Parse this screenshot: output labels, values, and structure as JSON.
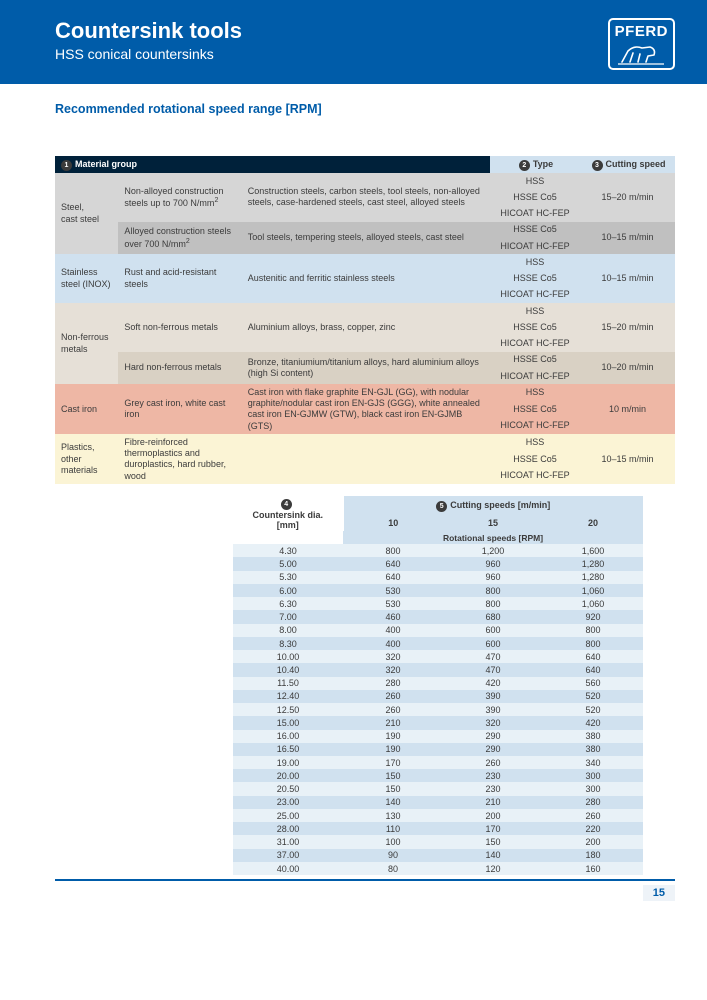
{
  "brand": "PFERD",
  "header": {
    "title": "Countersink tools",
    "subtitle": "HSS conical countersinks"
  },
  "section_heading": "Recommended rotational speed range [RPM]",
  "colors": {
    "brand_blue": "#005ca9",
    "header_dark": "#00213a",
    "band_blue": "#d0e1ef",
    "grey_l": "#d6d6d6",
    "grey_d": "#c0c0c0",
    "tan_l": "#e6e0d7",
    "tan_d": "#d9d1c4",
    "red": "#eeb7a5",
    "yel": "#fbf4d5"
  },
  "mat_table": {
    "header": {
      "num1": "1",
      "material_group": "Material group",
      "num2": "2",
      "type": "Type",
      "num3": "3",
      "cutting_speed": "Cutting speed"
    },
    "rows": [
      {
        "group": "Steel,\ncast steel",
        "groupRows": 5,
        "sub": "Non-alloyed construction steels up to 700 N/mm²",
        "subRows": 3,
        "desc": "Construction steels, carbon steels, tool steels, non-alloyed steels, case-hardened steels, cast steel, alloyed steels",
        "descRows": 3,
        "type": "HSS",
        "speed": "15–20 m/min",
        "speedRows": 3,
        "classes": [
          "r-grey-l",
          "r-grey-l",
          "r-grey-l",
          "r-grey-l",
          "r-grey-l"
        ]
      },
      {
        "type": "HSSE Co5"
      },
      {
        "type": "HICOAT HC-FEP"
      },
      {
        "sub": "Alloyed construction steels over 700 N/mm²",
        "subRows": 2,
        "desc": "Tool steels, tempering steels, alloyed steels, cast steel",
        "descRows": 2,
        "type": "HSSE Co5",
        "speed": "10–15 m/min",
        "speedRows": 2,
        "classes": [
          "r-grey-d",
          "r-grey-d",
          "r-grey-d",
          "r-grey-d",
          "r-grey-d"
        ]
      },
      {
        "type": "HICOAT HC-FEP"
      },
      {
        "group": "Stainless steel (INOX)",
        "groupRows": 3,
        "sub": "Rust and acid-resistant steels",
        "subRows": 3,
        "desc": "Austenitic and ferritic stainless steels",
        "descRows": 3,
        "type": "HSS",
        "speed": "10–15 m/min",
        "speedRows": 3,
        "classes": [
          "r-blue-l",
          "r-blue-l",
          "r-blue-l",
          "r-blue-l",
          "r-blue-l"
        ]
      },
      {
        "type": "HSSE Co5"
      },
      {
        "type": "HICOAT HC-FEP"
      },
      {
        "group": "Non-ferrous metals",
        "groupRows": 5,
        "sub": "Soft non-ferrous metals",
        "subRows": 3,
        "desc": "Aluminium alloys, brass, copper, zinc",
        "descRows": 3,
        "type": "HSS",
        "speed": "15–20 m/min",
        "speedRows": 3,
        "classes": [
          "r-tan-l",
          "r-tan-l",
          "r-tan-l",
          "r-tan-l",
          "r-tan-l"
        ]
      },
      {
        "type": "HSSE Co5"
      },
      {
        "type": "HICOAT HC-FEP"
      },
      {
        "sub": "Hard non-ferrous metals",
        "subRows": 2,
        "desc": "Bronze, titaniumium/titanium alloys, hard aluminium alloys (high Si content)",
        "descRows": 2,
        "type": "HSSE Co5",
        "speed": "10–20 m/min",
        "speedRows": 2,
        "classes": [
          "r-tan-d",
          "r-tan-d",
          "r-tan-d",
          "r-tan-d",
          "r-tan-d"
        ]
      },
      {
        "type": "HICOAT HC-FEP"
      },
      {
        "group": "Cast iron",
        "groupRows": 3,
        "sub": "Grey cast iron, white cast iron",
        "subRows": 3,
        "desc": "Cast iron with flake graphite EN-GJL (GG), with nodular graphite/nodular cast iron EN-GJS (GGG), white annealed cast iron EN-GJMW (GTW), black cast iron EN-GJMB (GTS)",
        "descRows": 3,
        "type": "HSS",
        "speed": "10 m/min",
        "speedRows": 3,
        "classes": [
          "r-red",
          "r-red",
          "r-red",
          "r-red",
          "r-red"
        ]
      },
      {
        "type": "HSSE Co5"
      },
      {
        "type": "HICOAT HC-FEP"
      },
      {
        "group": "Plastics, other materials",
        "groupRows": 3,
        "sub": "Fibre-reinforced thermoplastics and duroplastics, hard rubber, wood",
        "subRows": 3,
        "desc": "",
        "descRows": 3,
        "type": "HSS",
        "speed": "10–15 m/min",
        "speedRows": 3,
        "classes": [
          "r-yel",
          "r-yel",
          "r-yel",
          "r-yel",
          "r-yel"
        ],
        "descHidden": true
      },
      {
        "type": "HSSE Co5"
      },
      {
        "type": "HICOAT HC-FEP"
      }
    ]
  },
  "speed_table": {
    "header": {
      "num4": "4",
      "dia_label": "Countersink dia.\n[mm]",
      "num5": "5",
      "speeds_label": "Cutting speeds [m/min]",
      "cols": [
        "10",
        "15",
        "20"
      ],
      "rot_label": "Rotational speeds [RPM]"
    },
    "rows": [
      [
        "4.30",
        "800",
        "1,200",
        "1,600"
      ],
      [
        "5.00",
        "640",
        "960",
        "1,280"
      ],
      [
        "5.30",
        "640",
        "960",
        "1,280"
      ],
      [
        "6.00",
        "530",
        "800",
        "1,060"
      ],
      [
        "6.30",
        "530",
        "800",
        "1,060"
      ],
      [
        "7.00",
        "460",
        "680",
        "920"
      ],
      [
        "8.00",
        "400",
        "600",
        "800"
      ],
      [
        "8.30",
        "400",
        "600",
        "800"
      ],
      [
        "10.00",
        "320",
        "470",
        "640"
      ],
      [
        "10.40",
        "320",
        "470",
        "640"
      ],
      [
        "11.50",
        "280",
        "420",
        "560"
      ],
      [
        "12.40",
        "260",
        "390",
        "520"
      ],
      [
        "12.50",
        "260",
        "390",
        "520"
      ],
      [
        "15.00",
        "210",
        "320",
        "420"
      ],
      [
        "16.00",
        "190",
        "290",
        "380"
      ],
      [
        "16.50",
        "190",
        "290",
        "380"
      ],
      [
        "19.00",
        "170",
        "260",
        "340"
      ],
      [
        "20.00",
        "150",
        "230",
        "300"
      ],
      [
        "20.50",
        "150",
        "230",
        "300"
      ],
      [
        "23.00",
        "140",
        "210",
        "280"
      ],
      [
        "25.00",
        "130",
        "200",
        "260"
      ],
      [
        "28.00",
        "110",
        "170",
        "220"
      ],
      [
        "31.00",
        "100",
        "150",
        "200"
      ],
      [
        "37.00",
        "90",
        "140",
        "180"
      ],
      [
        "40.00",
        "80",
        "120",
        "160"
      ]
    ]
  },
  "page_number": "15"
}
